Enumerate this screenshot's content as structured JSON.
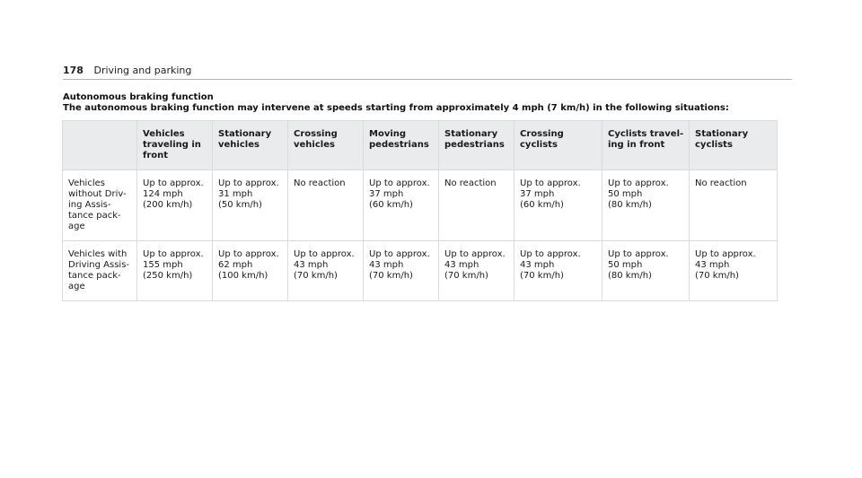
{
  "header": {
    "page_number": "178",
    "section": "Driving and parking"
  },
  "document": {
    "title": "Autonomous braking function",
    "intro": "The autonomous braking function may intervene at speeds starting from approximately 4 mph (7 km/h) in the following situations:"
  },
  "table": {
    "columns": [
      "",
      "Vehicles\ntraveling in\nfront",
      "Stationary\nvehicles",
      "Crossing\nvehicles",
      "Moving\npedestrians",
      "Stationary\npedestrians",
      "Crossing\ncyclists",
      "Cyclists travel-\ning in front",
      "Stationary\ncyclists"
    ],
    "rows": [
      [
        "Vehicles\nwithout Driv-\ning Assis-\ntance pack-\nage",
        "Up to approx.\n124 mph\n(200 km/h)",
        "Up to approx.\n31 mph\n(50 km/h)",
        "No reaction",
        "Up to approx.\n37 mph\n(60 km/h)",
        "No reaction",
        "Up to approx.\n37 mph\n(60 km/h)",
        "Up to approx.\n50 mph\n(80 km/h)",
        "No reaction"
      ],
      [
        "Vehicles with\nDriving Assis-\ntance pack-\nage",
        "Up to approx.\n155 mph\n(250 km/h)",
        "Up to approx.\n62 mph\n(100 km/h)",
        "Up to approx.\n43 mph\n(70 km/h)",
        "Up to approx.\n43 mph\n(70 km/h)",
        "Up to approx.\n43 mph\n(70 km/h)",
        "Up to approx.\n43 mph\n(70 km/h)",
        "Up to approx.\n50 mph\n(80 km/h)",
        "Up to approx.\n43 mph\n(70 km/h)"
      ]
    ]
  }
}
